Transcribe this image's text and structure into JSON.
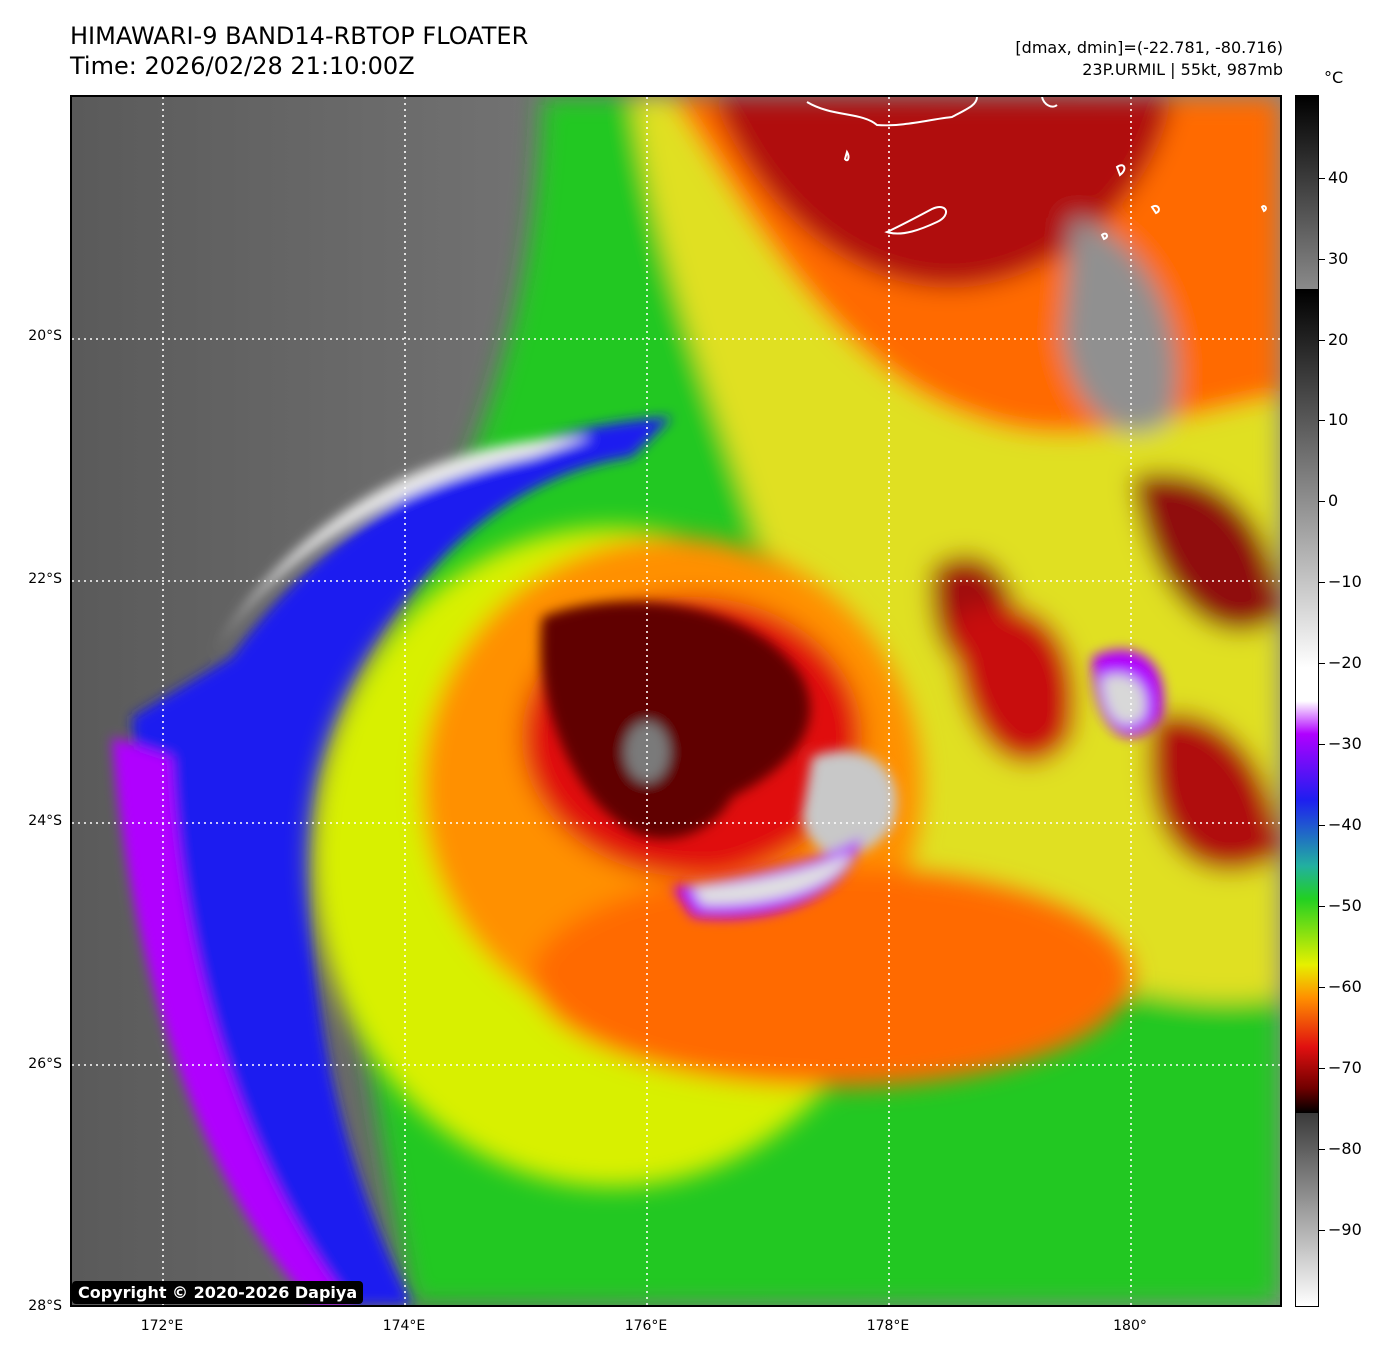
{
  "header": {
    "title_line1": "HIMAWARI-9 BAND14-RBTOP FLOATER",
    "title_line2": "Time: 2026/02/28 21:10:00Z",
    "info_line1": "[dmax, dmin]=(-22.781, -80.716)",
    "info_line2": "23P.URMIL | 55kt, 987mb"
  },
  "axes": {
    "lat_labels": [
      "20°S",
      "22°S",
      "24°S",
      "26°S",
      "28°S"
    ],
    "lon_labels": [
      "172°E",
      "174°E",
      "176°E",
      "178°E",
      "180°"
    ]
  },
  "colorbar": {
    "unit": "°C",
    "labels": [
      "40",
      "30",
      "20",
      "10",
      "0",
      "−10",
      "−20",
      "−30",
      "−40",
      "−50",
      "−60",
      "−70",
      "−80",
      "−90"
    ]
  },
  "copyright": "Copyright © 2020-2026 Dapiya",
  "colors": {
    "warm_gray": "#6e6e6e",
    "purple": "#b000ff",
    "blue": "#1e1ef0",
    "green": "#22d022",
    "yellow": "#e6f000",
    "orange": "#ff8c00",
    "red": "#d01010",
    "dark_red": "#600000"
  }
}
